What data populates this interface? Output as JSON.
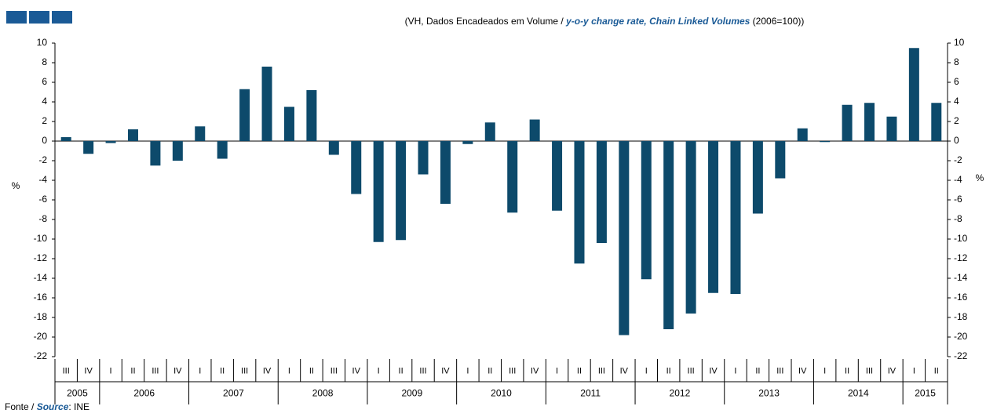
{
  "chart_data": {
    "type": "bar",
    "subtitle": [
      "(VH, Dados Encadeados em Volume / ",
      "y-o-y change rate, Chain Linked Volumes",
      " (2006=100))"
    ],
    "y_label": "%",
    "y2_label": "%",
    "source": [
      "Fonte / ",
      "Source",
      ": INE"
    ],
    "categories": [
      "III",
      "IV",
      "I",
      "II",
      "III",
      "IV",
      "I",
      "II",
      "III",
      "IV",
      "I",
      "II",
      "III",
      "IV",
      "I",
      "II",
      "III",
      "IV",
      "I",
      "II",
      "III",
      "IV",
      "I",
      "II",
      "III",
      "IV",
      "I",
      "II",
      "III",
      "IV",
      "I",
      "II",
      "III",
      "IV",
      "I",
      "II",
      "III",
      "IV",
      "I",
      "II"
    ],
    "years": [
      "2005",
      "2006",
      "2007",
      "2008",
      "2009",
      "2010",
      "2011",
      "2012",
      "2013",
      "2014",
      "2015"
    ],
    "values": [
      0.4,
      -1.3,
      -0.2,
      1.2,
      -2.5,
      -2.0,
      1.5,
      -1.8,
      5.3,
      7.6,
      3.5,
      5.2,
      -1.4,
      -5.4,
      -10.3,
      -10.1,
      -3.4,
      -6.4,
      -0.3,
      1.9,
      -7.3,
      2.2,
      -7.1,
      -12.5,
      -10.4,
      -19.8,
      -14.1,
      -19.2,
      -17.6,
      -15.5,
      -15.6,
      -7.4,
      -3.8,
      1.3,
      -0.1,
      3.7,
      3.9,
      2.5,
      9.5,
      3.9
    ],
    "color": "#0d4a6b",
    "ylim": [
      -22,
      10
    ],
    "yticks": [
      10,
      8,
      6,
      4,
      2,
      0,
      -2,
      -4,
      -6,
      -8,
      -10,
      -12,
      -14,
      -16,
      -18,
      -20,
      -22
    ],
    "y2lim": [
      -22,
      10
    ],
    "y2ticks": [
      10,
      8,
      6,
      4,
      2,
      0,
      -2,
      -4,
      -6,
      -8,
      -10,
      -12,
      -14,
      -16,
      -18,
      -20,
      -22
    ]
  }
}
